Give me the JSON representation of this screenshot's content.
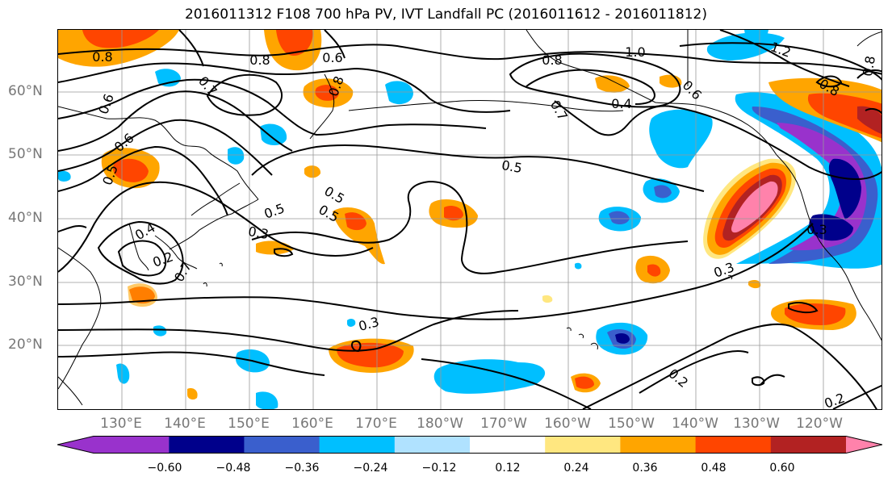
{
  "title": "2016011312 F108 700 hPa PV, IVT Landfall PC (2016011612 - 2016011812)",
  "lat_labels": [
    "60°N",
    "50°N",
    "40°N",
    "30°N",
    "20°N"
  ],
  "lon_labels": [
    "130°E",
    "140°E",
    "150°E",
    "160°E",
    "170°E",
    "180°W",
    "170°W",
    "160°W",
    "150°W",
    "140°W",
    "130°W",
    "120°W"
  ],
  "colorbar": {
    "ticks": [
      "−0.60",
      "−0.48",
      "−0.36",
      "−0.24",
      "−0.12",
      "0.12",
      "0.24",
      "0.36",
      "0.48",
      "0.60"
    ],
    "colors": [
      "#9932cc",
      "#00008b",
      "#3a5fcd",
      "#00bfff",
      "#b0e2ff",
      "#ffffff",
      "#ffe780",
      "#ffa500",
      "#ff4500",
      "#b22222",
      "#ff82ab"
    ]
  },
  "contour_labels": [
    "0.8",
    "0.8",
    "0.8",
    "1.0",
    "1.2",
    "0.8",
    "0.7",
    "0.6",
    "0.4",
    "0.8",
    "0.7",
    "0.6",
    "0.5",
    "0.5",
    "0.5",
    "0.4",
    "0.3",
    "0.3",
    "0.3",
    "0.2",
    "0.2",
    "0.2",
    "0.5",
    "0.6",
    "0.7",
    "0.5",
    "0.6",
    "0.8",
    "0.3"
  ]
}
